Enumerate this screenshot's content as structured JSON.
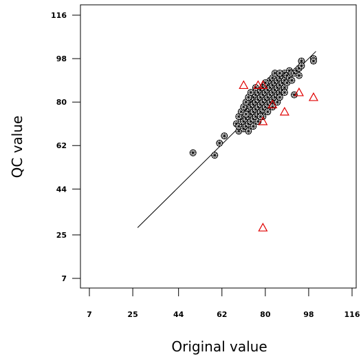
{
  "chart_data": {
    "type": "scatter",
    "title": "",
    "xlabel": "Original value",
    "ylabel": "QC value",
    "xlim": [
      7,
      116
    ],
    "ylim": [
      7,
      116
    ],
    "x_ticks": [
      7,
      25,
      44,
      62,
      80,
      98,
      116
    ],
    "y_ticks": [
      7,
      25,
      44,
      62,
      80,
      98,
      116
    ],
    "x_tick_labels": [
      "7",
      "25",
      "44",
      "62",
      "80",
      "98",
      "116"
    ],
    "y_tick_labels": [
      "7",
      "25",
      "44",
      "62",
      "80",
      "98",
      "116"
    ],
    "grid": false,
    "legend": "none",
    "colors": {
      "agree": "#000000",
      "outlier": "#e00000",
      "line": "#000000"
    },
    "fit_line": {
      "x": [
        27,
        101
      ],
      "y": [
        28,
        101
      ]
    },
    "series": [
      {
        "marker": "circle-asterisk",
        "color": "#000000",
        "points": [
          [
            50,
            59
          ],
          [
            59,
            58
          ],
          [
            61,
            63
          ],
          [
            63,
            66
          ],
          [
            68,
            71
          ],
          [
            69,
            68
          ],
          [
            69,
            70
          ],
          [
            70,
            72
          ],
          [
            70,
            74
          ],
          [
            71,
            69
          ],
          [
            71,
            72
          ],
          [
            72,
            70
          ],
          [
            72,
            73
          ],
          [
            72,
            77
          ],
          [
            73,
            68
          ],
          [
            73,
            71
          ],
          [
            73,
            74
          ],
          [
            73,
            76
          ],
          [
            74,
            72
          ],
          [
            74,
            75
          ],
          [
            74,
            78
          ],
          [
            74,
            80
          ],
          [
            75,
            73
          ],
          [
            75,
            76
          ],
          [
            75,
            79
          ],
          [
            75,
            82
          ],
          [
            76,
            74
          ],
          [
            76,
            77
          ],
          [
            76,
            80
          ],
          [
            76,
            83
          ],
          [
            77,
            75
          ],
          [
            77,
            78
          ],
          [
            77,
            81
          ],
          [
            77,
            84
          ],
          [
            78,
            76
          ],
          [
            78,
            79
          ],
          [
            78,
            82
          ],
          [
            78,
            85
          ],
          [
            79,
            77
          ],
          [
            79,
            80
          ],
          [
            79,
            83
          ],
          [
            79,
            86
          ],
          [
            80,
            78
          ],
          [
            80,
            81
          ],
          [
            80,
            84
          ],
          [
            80,
            87
          ],
          [
            81,
            79
          ],
          [
            81,
            82
          ],
          [
            81,
            85
          ],
          [
            81,
            88
          ],
          [
            82,
            80
          ],
          [
            82,
            83
          ],
          [
            82,
            86
          ],
          [
            82,
            89
          ],
          [
            83,
            81
          ],
          [
            83,
            84
          ],
          [
            83,
            87
          ],
          [
            83,
            90
          ],
          [
            84,
            82
          ],
          [
            84,
            85
          ],
          [
            84,
            88
          ],
          [
            85,
            83
          ],
          [
            85,
            86
          ],
          [
            85,
            89
          ],
          [
            86,
            84
          ],
          [
            86,
            87
          ],
          [
            86,
            90
          ],
          [
            87,
            85
          ],
          [
            87,
            88
          ],
          [
            87,
            91
          ],
          [
            88,
            86
          ],
          [
            88,
            89
          ],
          [
            88,
            92
          ],
          [
            89,
            88
          ],
          [
            89,
            91
          ],
          [
            90,
            90
          ],
          [
            90,
            93
          ],
          [
            91,
            89
          ],
          [
            91,
            92
          ],
          [
            92,
            92
          ],
          [
            92,
            83
          ],
          [
            93,
            93
          ],
          [
            94,
            94
          ],
          [
            94,
            91
          ],
          [
            95,
            97
          ],
          [
            95,
            95
          ],
          [
            100,
            98
          ],
          [
            100,
            97
          ],
          [
            69,
            74
          ],
          [
            70,
            76
          ],
          [
            71,
            78
          ],
          [
            72,
            80
          ],
          [
            73,
            82
          ],
          [
            74,
            84
          ],
          [
            76,
            86
          ],
          [
            80,
            88
          ],
          [
            84,
            92
          ],
          [
            86,
            92
          ],
          [
            77,
            72
          ],
          [
            79,
            74
          ],
          [
            81,
            76
          ],
          [
            83,
            78
          ],
          [
            85,
            80
          ],
          [
            86,
            82
          ],
          [
            88,
            84
          ],
          [
            75,
            70
          ],
          [
            72,
            75
          ],
          [
            78,
            74
          ]
        ]
      },
      {
        "marker": "triangle",
        "color": "#e00000",
        "points": [
          [
            71,
            87
          ],
          [
            77,
            87
          ],
          [
            79,
            87
          ],
          [
            83,
            79
          ],
          [
            88,
            76
          ],
          [
            94,
            84
          ],
          [
            100,
            82
          ],
          [
            79,
            72
          ],
          [
            79,
            28
          ]
        ]
      }
    ]
  }
}
